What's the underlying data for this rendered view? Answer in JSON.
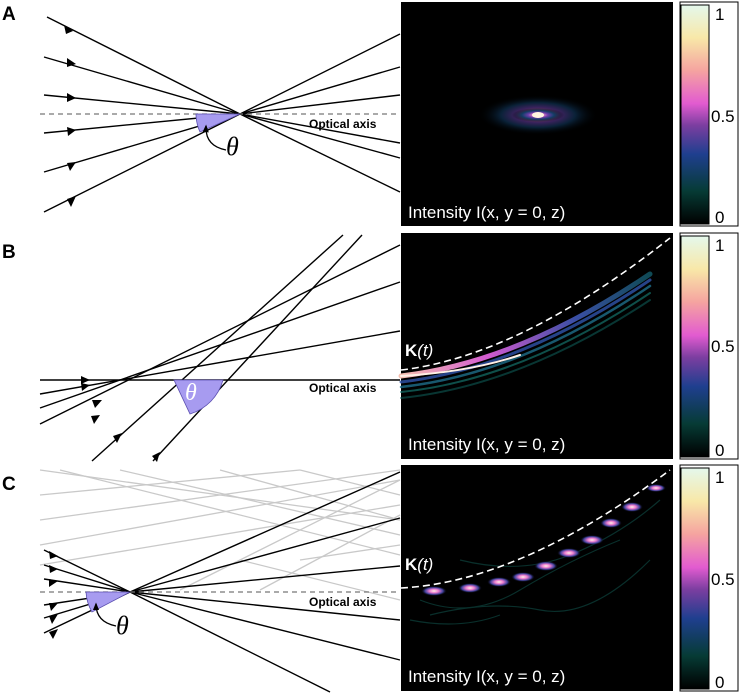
{
  "panels": [
    {
      "letter": "A",
      "optical_axis_label": "Optical axis",
      "angle_symbol": "θ",
      "intensity_label": "Intensity I(x, y = 0, z)"
    },
    {
      "letter": "B",
      "optical_axis_label": "Optical axis",
      "angle_symbol": "θ",
      "trajectory_label_bold": "K",
      "trajectory_label_italic": "(t)",
      "intensity_label": "Intensity I(x, y = 0, z)"
    },
    {
      "letter": "C",
      "optical_axis_label": "Optical axis",
      "angle_symbol": "θ",
      "trajectory_label_bold": "K",
      "trajectory_label_italic": "(t)",
      "intensity_label": "Intensity I(x, y = 0, z)"
    }
  ],
  "colorbar": {
    "ticks": [
      "1",
      "0.5",
      "0"
    ],
    "colormap": [
      "#000000",
      "#063b35",
      "#1f3f8f",
      "#7b3ea0",
      "#e25bd0",
      "#f5a3a0",
      "#f8e8a8",
      "#e4f8ec"
    ]
  },
  "colors": {
    "ray": "#000000",
    "ghost_ray": "#c9c9c9",
    "angle_fill": "#a79bf0",
    "axis_dash": "#777777",
    "trajectory": "#ffffff"
  }
}
